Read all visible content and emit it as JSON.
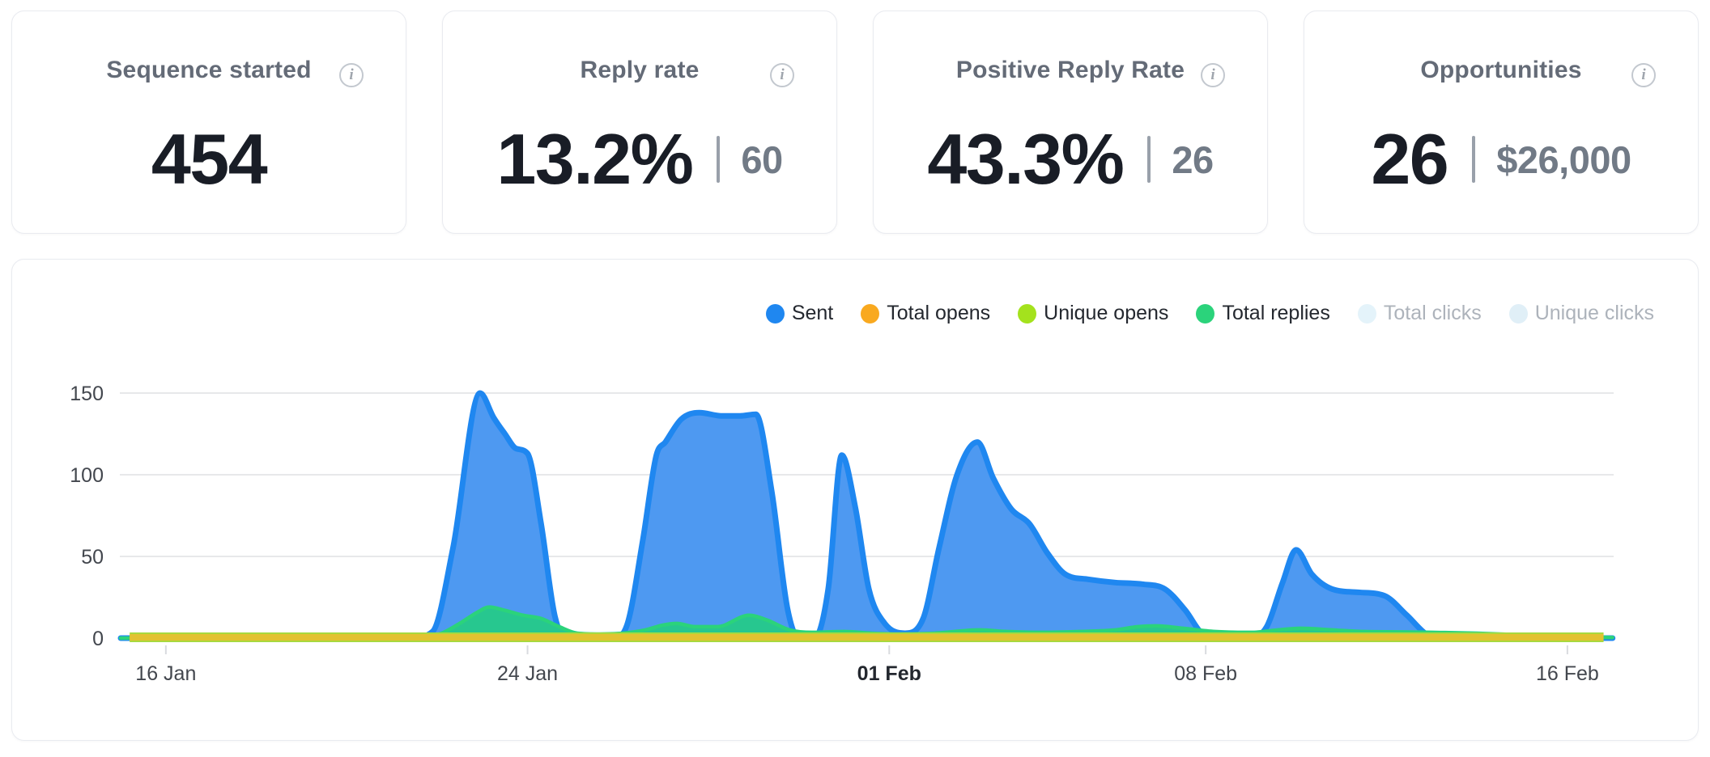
{
  "cards": [
    {
      "title": "Sequence started",
      "value": "454",
      "secondary": null
    },
    {
      "title": "Reply rate",
      "value": "13.2%",
      "secondary": "60"
    },
    {
      "title": "Positive Reply Rate",
      "value": "43.3%",
      "secondary": "26"
    },
    {
      "title": "Opportunities",
      "value": "26",
      "secondary": "$26,000"
    }
  ],
  "chart_data": {
    "type": "area",
    "title": "",
    "x_axis_note": "daily values, day 0 = 15 Jan",
    "x_domain_days": [
      0,
      33
    ],
    "ylim": [
      0,
      155
    ],
    "y_ticks": [
      0,
      50,
      100,
      150
    ],
    "grid": true,
    "legend_position": "top-right",
    "x_ticks": [
      {
        "label": "16 Jan",
        "day": 1,
        "bold": false
      },
      {
        "label": "24 Jan",
        "day": 9,
        "bold": false
      },
      {
        "label": "01 Feb",
        "day": 17,
        "bold": true
      },
      {
        "label": "08 Feb",
        "day": 24,
        "bold": false
      },
      {
        "label": "16 Feb",
        "day": 32,
        "bold": false
      }
    ],
    "series": [
      {
        "name": "Sent",
        "kind": "area",
        "z": 1,
        "color": "#1f87f0",
        "fill": "#4e99f1",
        "stroke_width": 7,
        "points": [
          [
            0,
            0
          ],
          [
            6.4,
            0
          ],
          [
            6.9,
            4
          ],
          [
            7.35,
            55
          ],
          [
            7.95,
            150
          ],
          [
            8.25,
            135
          ],
          [
            8.5,
            125
          ],
          [
            8.75,
            116
          ],
          [
            9.0,
            113
          ],
          [
            9.3,
            70
          ],
          [
            9.6,
            14
          ],
          [
            9.85,
            0
          ],
          [
            10.9,
            0
          ],
          [
            11.2,
            8
          ],
          [
            11.55,
            60
          ],
          [
            11.85,
            112
          ],
          [
            12.05,
            120
          ],
          [
            12.4,
            134
          ],
          [
            12.8,
            138
          ],
          [
            13.3,
            136
          ],
          [
            13.7,
            136
          ],
          [
            14.05,
            137
          ],
          [
            14.4,
            90
          ],
          [
            14.75,
            18
          ],
          [
            15.0,
            0
          ],
          [
            15.35,
            0
          ],
          [
            15.65,
            30
          ],
          [
            15.95,
            112
          ],
          [
            16.25,
            80
          ],
          [
            16.55,
            30
          ],
          [
            16.9,
            9
          ],
          [
            17.35,
            3
          ],
          [
            17.75,
            12
          ],
          [
            18.1,
            55
          ],
          [
            18.5,
            100
          ],
          [
            18.95,
            120
          ],
          [
            19.3,
            98
          ],
          [
            19.7,
            79
          ],
          [
            20.1,
            70
          ],
          [
            20.5,
            52
          ],
          [
            20.9,
            39
          ],
          [
            21.4,
            36
          ],
          [
            22.0,
            34
          ],
          [
            22.6,
            33
          ],
          [
            23.1,
            30
          ],
          [
            23.55,
            17
          ],
          [
            23.95,
            2
          ],
          [
            24.2,
            0.5
          ],
          [
            25.0,
            0.5
          ],
          [
            25.35,
            7
          ],
          [
            25.7,
            34
          ],
          [
            26.0,
            54
          ],
          [
            26.35,
            39
          ],
          [
            26.8,
            30
          ],
          [
            27.4,
            28
          ],
          [
            27.95,
            26
          ],
          [
            28.45,
            14
          ],
          [
            28.9,
            2
          ],
          [
            29.2,
            0
          ],
          [
            33,
            0
          ]
        ]
      },
      {
        "name": "Total opens",
        "kind": "band",
        "z": 4,
        "color": "#f9a91f",
        "band_color": "#e2c231",
        "stroke_width": 8,
        "points": [
          [
            0.2,
            0.5
          ],
          [
            32.8,
            0.5
          ]
        ]
      },
      {
        "name": "Unique opens",
        "kind": "band",
        "z": 3,
        "color": "#a4e21d",
        "band_color": "#a8d93f",
        "stroke_width": 12,
        "points": [
          [
            0.2,
            0.5
          ],
          [
            32.8,
            0.5
          ]
        ]
      },
      {
        "name": "Total replies",
        "kind": "area",
        "z": 2,
        "color": "#2bd37b",
        "fill": "#27c78f",
        "stroke_width": 4.5,
        "points": [
          [
            0,
            0
          ],
          [
            6.6,
            0
          ],
          [
            7.1,
            3
          ],
          [
            7.5,
            9
          ],
          [
            7.9,
            16
          ],
          [
            8.15,
            19
          ],
          [
            8.5,
            17
          ],
          [
            8.9,
            14
          ],
          [
            9.3,
            12
          ],
          [
            9.7,
            7
          ],
          [
            10.1,
            3
          ],
          [
            10.6,
            2.5
          ],
          [
            11.1,
            3
          ],
          [
            11.6,
            5
          ],
          [
            12.0,
            8
          ],
          [
            12.3,
            9
          ],
          [
            12.7,
            7
          ],
          [
            13.2,
            7
          ],
          [
            13.9,
            14
          ],
          [
            14.3,
            11
          ],
          [
            14.8,
            5
          ],
          [
            15.3,
            3.5
          ],
          [
            16.0,
            4
          ],
          [
            16.6,
            3
          ],
          [
            17.2,
            2.5
          ],
          [
            18.0,
            3
          ],
          [
            19.0,
            5
          ],
          [
            19.6,
            4
          ],
          [
            20.4,
            3.5
          ],
          [
            21.2,
            4
          ],
          [
            22.0,
            5
          ],
          [
            22.5,
            7
          ],
          [
            22.9,
            7.5
          ],
          [
            23.5,
            6
          ],
          [
            24.2,
            4
          ],
          [
            25.0,
            3.5
          ],
          [
            25.6,
            5
          ],
          [
            26.1,
            6
          ],
          [
            26.8,
            5
          ],
          [
            27.5,
            4
          ],
          [
            28.3,
            3.8
          ],
          [
            29.0,
            3.5
          ],
          [
            30.0,
            3
          ],
          [
            31.0,
            2
          ],
          [
            32.0,
            0.8
          ],
          [
            33,
            0.4
          ]
        ]
      },
      {
        "name": "Total clicks",
        "kind": "legend-only",
        "z": 9,
        "color": "#e4f3fa",
        "disabled": true
      },
      {
        "name": "Unique clicks",
        "kind": "legend-only",
        "z": 9,
        "color": "#e0eff7",
        "disabled": true
      }
    ]
  },
  "axis_style": {
    "label_color": "#43474e",
    "bold_label_color": "#23272e",
    "grid_color": "#e7e8ea",
    "tick_color": "#d9dbdf"
  }
}
